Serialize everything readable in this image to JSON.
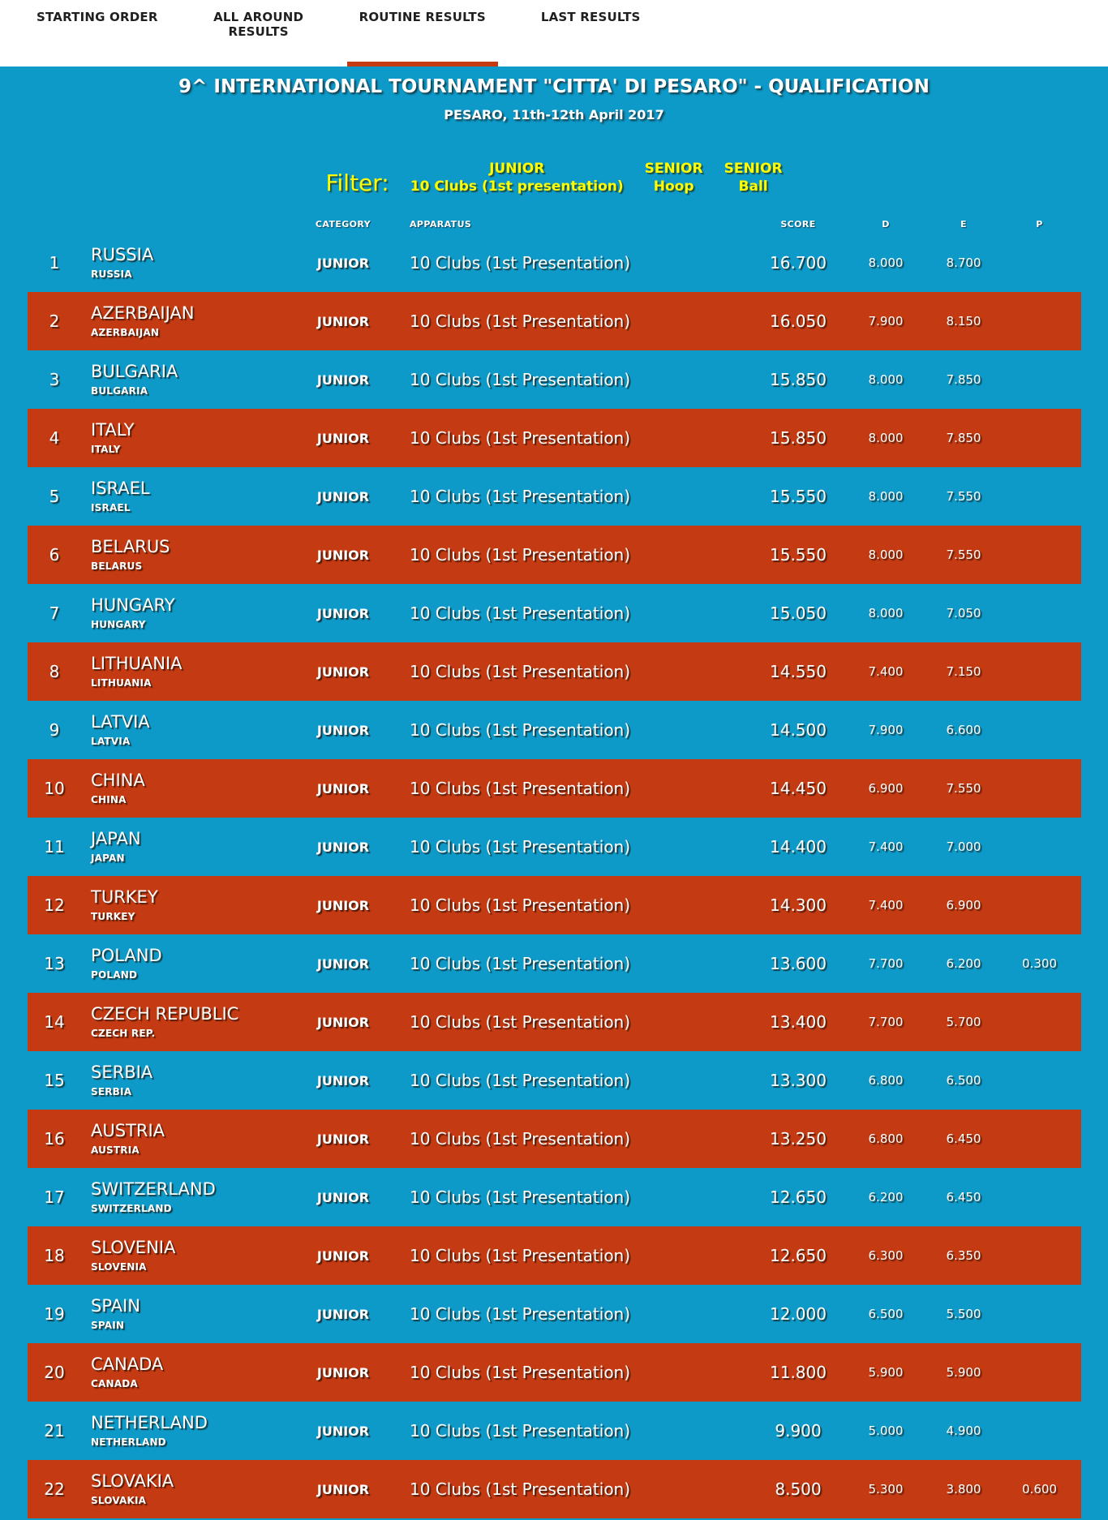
{
  "nav": {
    "tabs": [
      {
        "label": "STARTING ORDER",
        "active": false
      },
      {
        "label": "ALL AROUND RESULTS",
        "active": false
      },
      {
        "label": "ROUTINE RESULTS",
        "active": true
      },
      {
        "label": "LAST RESULTS",
        "active": false
      }
    ]
  },
  "header": {
    "title": "9^ INTERNATIONAL TOURNAMENT \"CITTA' DI PESARO\" - QUALIFICATION",
    "subtitle": "PESARO, 11th-12th April 2017"
  },
  "filter": {
    "label": "Filter:",
    "options": [
      {
        "line1": "JUNIOR",
        "line2": "10 Clubs (1st presentation)"
      },
      {
        "line1": "SENIOR",
        "line2": "Hoop"
      },
      {
        "line1": "SENIOR",
        "line2": "Ball"
      }
    ]
  },
  "table": {
    "columns": {
      "category": "CATEGORY",
      "apparatus": "APPARATUS",
      "score": "SCORE",
      "d": "D",
      "e": "E",
      "p": "P"
    },
    "rows": [
      {
        "rank": "1",
        "name": "RUSSIA",
        "subname": "RUSSIA",
        "category": "JUNIOR",
        "apparatus": "10 Clubs (1st Presentation)",
        "score": "16.700",
        "d": "8.000",
        "e": "8.700",
        "p": ""
      },
      {
        "rank": "2",
        "name": "AZERBAIJAN",
        "subname": "AZERBAIJAN",
        "category": "JUNIOR",
        "apparatus": "10 Clubs (1st Presentation)",
        "score": "16.050",
        "d": "7.900",
        "e": "8.150",
        "p": ""
      },
      {
        "rank": "3",
        "name": "BULGARIA",
        "subname": "BULGARIA",
        "category": "JUNIOR",
        "apparatus": "10 Clubs (1st Presentation)",
        "score": "15.850",
        "d": "8.000",
        "e": "7.850",
        "p": ""
      },
      {
        "rank": "4",
        "name": "ITALY",
        "subname": "ITALY",
        "category": "JUNIOR",
        "apparatus": "10 Clubs (1st Presentation)",
        "score": "15.850",
        "d": "8.000",
        "e": "7.850",
        "p": ""
      },
      {
        "rank": "5",
        "name": "ISRAEL",
        "subname": "ISRAEL",
        "category": "JUNIOR",
        "apparatus": "10 Clubs (1st Presentation)",
        "score": "15.550",
        "d": "8.000",
        "e": "7.550",
        "p": ""
      },
      {
        "rank": "6",
        "name": "BELARUS",
        "subname": "BELARUS",
        "category": "JUNIOR",
        "apparatus": "10 Clubs (1st Presentation)",
        "score": "15.550",
        "d": "8.000",
        "e": "7.550",
        "p": ""
      },
      {
        "rank": "7",
        "name": "HUNGARY",
        "subname": "HUNGARY",
        "category": "JUNIOR",
        "apparatus": "10 Clubs (1st Presentation)",
        "score": "15.050",
        "d": "8.000",
        "e": "7.050",
        "p": ""
      },
      {
        "rank": "8",
        "name": "LITHUANIA",
        "subname": "LITHUANIA",
        "category": "JUNIOR",
        "apparatus": "10 Clubs (1st Presentation)",
        "score": "14.550",
        "d": "7.400",
        "e": "7.150",
        "p": ""
      },
      {
        "rank": "9",
        "name": "LATVIA",
        "subname": "LATVIA",
        "category": "JUNIOR",
        "apparatus": "10 Clubs (1st Presentation)",
        "score": "14.500",
        "d": "7.900",
        "e": "6.600",
        "p": ""
      },
      {
        "rank": "10",
        "name": "CHINA",
        "subname": "CHINA",
        "category": "JUNIOR",
        "apparatus": "10 Clubs (1st Presentation)",
        "score": "14.450",
        "d": "6.900",
        "e": "7.550",
        "p": ""
      },
      {
        "rank": "11",
        "name": "JAPAN",
        "subname": "JAPAN",
        "category": "JUNIOR",
        "apparatus": "10 Clubs (1st Presentation)",
        "score": "14.400",
        "d": "7.400",
        "e": "7.000",
        "p": ""
      },
      {
        "rank": "12",
        "name": "TURKEY",
        "subname": "TURKEY",
        "category": "JUNIOR",
        "apparatus": "10 Clubs (1st Presentation)",
        "score": "14.300",
        "d": "7.400",
        "e": "6.900",
        "p": ""
      },
      {
        "rank": "13",
        "name": "POLAND",
        "subname": "POLAND",
        "category": "JUNIOR",
        "apparatus": "10 Clubs (1st Presentation)",
        "score": "13.600",
        "d": "7.700",
        "e": "6.200",
        "p": "0.300"
      },
      {
        "rank": "14",
        "name": "CZECH REPUBLIC",
        "subname": "CZECH REP.",
        "category": "JUNIOR",
        "apparatus": "10 Clubs (1st Presentation)",
        "score": "13.400",
        "d": "7.700",
        "e": "5.700",
        "p": ""
      },
      {
        "rank": "15",
        "name": "SERBIA",
        "subname": "SERBIA",
        "category": "JUNIOR",
        "apparatus": "10 Clubs (1st Presentation)",
        "score": "13.300",
        "d": "6.800",
        "e": "6.500",
        "p": ""
      },
      {
        "rank": "16",
        "name": "AUSTRIA",
        "subname": "AUSTRIA",
        "category": "JUNIOR",
        "apparatus": "10 Clubs (1st Presentation)",
        "score": "13.250",
        "d": "6.800",
        "e": "6.450",
        "p": ""
      },
      {
        "rank": "17",
        "name": "SWITZERLAND",
        "subname": "SWITZERLAND",
        "category": "JUNIOR",
        "apparatus": "10 Clubs (1st Presentation)",
        "score": "12.650",
        "d": "6.200",
        "e": "6.450",
        "p": ""
      },
      {
        "rank": "18",
        "name": "SLOVENIA",
        "subname": "SLOVENIA",
        "category": "JUNIOR",
        "apparatus": "10 Clubs (1st Presentation)",
        "score": "12.650",
        "d": "6.300",
        "e": "6.350",
        "p": ""
      },
      {
        "rank": "19",
        "name": "SPAIN",
        "subname": "SPAIN",
        "category": "JUNIOR",
        "apparatus": "10 Clubs (1st Presentation)",
        "score": "12.000",
        "d": "6.500",
        "e": "5.500",
        "p": ""
      },
      {
        "rank": "20",
        "name": "CANADA",
        "subname": "CANADA",
        "category": "JUNIOR",
        "apparatus": "10 Clubs (1st Presentation)",
        "score": "11.800",
        "d": "5.900",
        "e": "5.900",
        "p": ""
      },
      {
        "rank": "21",
        "name": "NETHERLAND",
        "subname": "NETHERLAND",
        "category": "JUNIOR",
        "apparatus": "10 Clubs (1st Presentation)",
        "score": "9.900",
        "d": "5.000",
        "e": "4.900",
        "p": ""
      },
      {
        "rank": "22",
        "name": "SLOVAKIA",
        "subname": "SLOVAKIA",
        "category": "JUNIOR",
        "apparatus": "10 Clubs (1st Presentation)",
        "score": "8.500",
        "d": "5.300",
        "e": "3.800",
        "p": "0.600"
      }
    ]
  },
  "colors": {
    "background": "#0d9ac9",
    "row_alt": "#c43a12",
    "active_tab_underline": "#c43a12",
    "filter_text": "#ffff00",
    "text": "#ffffff"
  }
}
